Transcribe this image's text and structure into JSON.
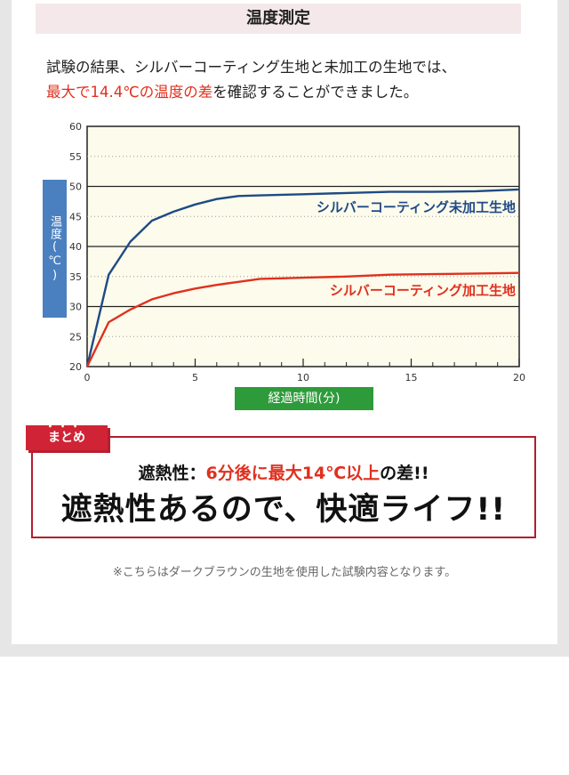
{
  "heading": "温度測定",
  "intro": {
    "line1": "試験の結果、シルバーコーティング生地と未加工の生地では、",
    "line2_red": "最大で14.4℃の温度の差",
    "line2_rest": "を確認することができました。"
  },
  "chart_data": {
    "type": "line",
    "xlabel": "経過時間(分)",
    "ylabel": "温度(℃)",
    "xlim": [
      0,
      20
    ],
    "ylim": [
      20,
      60
    ],
    "x_ticks": [
      "0",
      "5",
      "10",
      "15",
      "20"
    ],
    "y_ticks": [
      "20",
      "25",
      "30",
      "35",
      "40",
      "45",
      "50",
      "55",
      "60"
    ],
    "grid": "horizontal",
    "background": "#fdfbeb",
    "series": [
      {
        "name": "シルバーコーティング未加工生地",
        "color": "#1f4a86",
        "x": [
          0,
          1,
          2,
          3,
          4,
          5,
          6,
          7,
          8,
          9,
          10,
          12,
          14,
          16,
          18,
          20
        ],
        "y": [
          20,
          35.3,
          40.8,
          44.3,
          45.8,
          47,
          47.9,
          48.4,
          48.5,
          48.6,
          48.7,
          48.9,
          49.1,
          49.1,
          49.2,
          49.5
        ]
      },
      {
        "name": "シルバーコーティング加工生地",
        "color": "#e0301e",
        "x": [
          0,
          1,
          2,
          3,
          4,
          5,
          6,
          7,
          8,
          9,
          10,
          12,
          14,
          16,
          18,
          20
        ],
        "y": [
          20,
          27.4,
          29.5,
          31.2,
          32.2,
          33,
          33.6,
          34.1,
          34.6,
          34.7,
          34.8,
          35,
          35.3,
          35.4,
          35.5,
          35.6
        ]
      }
    ]
  },
  "summary": {
    "tag": "まとめ",
    "line1_prefix": "遮熱性：",
    "line1_red": "6分後に最大14℃以上",
    "line1_suffix": "の差!!",
    "line2": "遮熱性あるので、快適ライフ!!"
  },
  "note": "※こちらはダークブラウンの生地を使用した試験内容となります。"
}
